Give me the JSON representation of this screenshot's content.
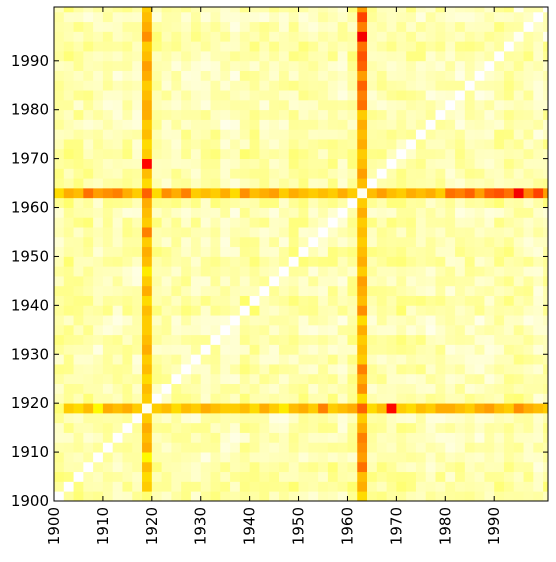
{
  "chart_data": {
    "type": "heatmap",
    "title": "",
    "xlabel": "",
    "ylabel": "",
    "x_range": [
      1900,
      2001
    ],
    "y_range": [
      1900,
      2001
    ],
    "cell_size_years": 2,
    "x_ticks": [
      "1900",
      "1910",
      "1920",
      "1930",
      "1940",
      "1950",
      "1960",
      "1970",
      "1980",
      "1990"
    ],
    "y_ticks": [
      "1900",
      "1910",
      "1920",
      "1930",
      "1940",
      "1950",
      "1960",
      "1970",
      "1980",
      "1990"
    ],
    "tick_values": [
      1900,
      1910,
      1920,
      1930,
      1940,
      1950,
      1960,
      1970,
      1980,
      1990
    ],
    "colormap": "hot_r",
    "colormap_stops": [
      "#ffffff",
      "#ffff00",
      "#ff0000",
      "#000000"
    ],
    "value_range": [
      0,
      1
    ],
    "grid": false,
    "legend": "none",
    "band_levels": {
      "1918": [
        0.18,
        0.4,
        0.38,
        0.42,
        0.34,
        0.44,
        0.42,
        0.44,
        0.4,
        0.02,
        0.4,
        0.42,
        0.38,
        0.42,
        0.4,
        0.44,
        0.42,
        0.4,
        0.4,
        0.42,
        0.38,
        0.44,
        0.4,
        0.36,
        0.42,
        0.44,
        0.4,
        0.5,
        0.4,
        0.42,
        0.44,
        0.4,
        0.38,
        0.42,
        0.66,
        0.4,
        0.38,
        0.42,
        0.4,
        0.44,
        0.44,
        0.42,
        0.4,
        0.44,
        0.46,
        0.42,
        0.4,
        0.46,
        0.44,
        0.42,
        0.4
      ],
      "1962": [
        0.38,
        0.44,
        0.42,
        0.52,
        0.46,
        0.48,
        0.5,
        0.44,
        0.4,
        0.54,
        0.38,
        0.48,
        0.44,
        0.5,
        0.4,
        0.42,
        0.4,
        0.44,
        0.38,
        0.48,
        0.42,
        0.44,
        0.46,
        0.4,
        0.44,
        0.42,
        0.4,
        0.42,
        0.4,
        0.44,
        0.4,
        0.02,
        0.42,
        0.46,
        0.42,
        0.4,
        0.44,
        0.42,
        0.44,
        0.4,
        0.52,
        0.5,
        0.54,
        0.46,
        0.54,
        0.56,
        0.52,
        0.6,
        0.5,
        0.58,
        0.46
      ],
      "1994": [
        0.12,
        0.1,
        0.08,
        0.12,
        0.1,
        0.14,
        0.08,
        0.1,
        0.12,
        0.48,
        0.18,
        0.1,
        0.14,
        0.1,
        0.16,
        0.12,
        0.1,
        0.14,
        0.08,
        0.12,
        0.1,
        0.14,
        0.08,
        0.1,
        0.12,
        0.1,
        0.08,
        0.12,
        0.1,
        0.14,
        0.12,
        0.68,
        0.1,
        0.08,
        0.12,
        0.1,
        0.14,
        0.08,
        0.1,
        0.12,
        0.1,
        0.08,
        0.12,
        0.1,
        0.14,
        0.12,
        0.1,
        0.08,
        0.12,
        0.1,
        0.02
      ]
    }
  }
}
